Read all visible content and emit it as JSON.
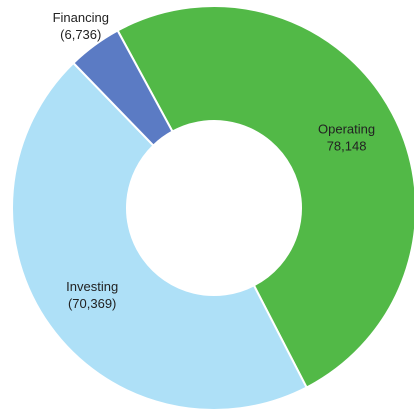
{
  "chart_data": {
    "type": "donut",
    "categories": [
      "Operating",
      "Investing",
      "Financing"
    ],
    "values": [
      78148,
      -70369,
      -6736
    ],
    "value_labels": [
      "78,148",
      "(70,369)",
      "(6,736)"
    ],
    "colors": [
      "#52b947",
      "#aee0f7",
      "#5b7bc4"
    ]
  }
}
